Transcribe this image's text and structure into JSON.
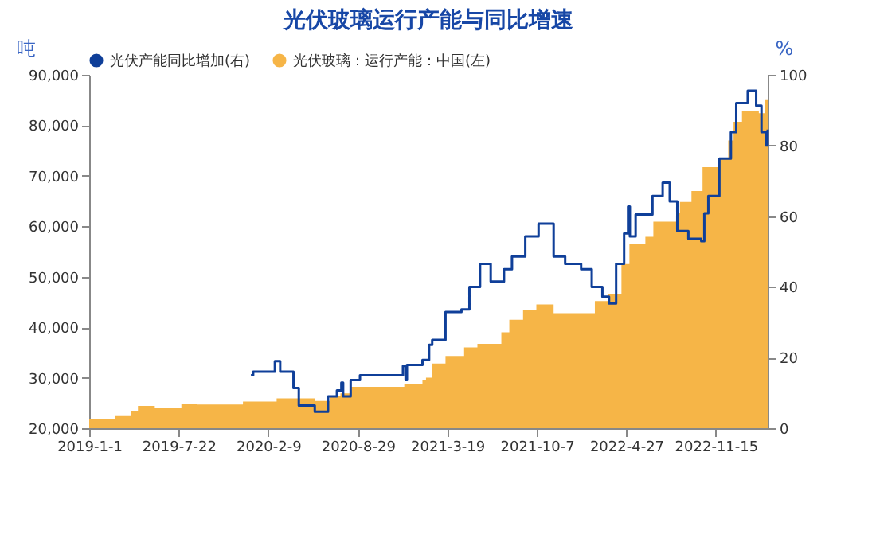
{
  "chart_data": {
    "type": "step",
    "title": "光伏玻璃运行产能与同比增速",
    "ylabel": "吨",
    "y2label": "%",
    "legend": "top",
    "xlim": [
      "2019-01-01",
      "2023-03-12"
    ],
    "xticks": [
      {
        "value": "2019-01-01",
        "label": "2019-1-1"
      },
      {
        "value": "2019-07-22",
        "label": "2019-7-22"
      },
      {
        "value": "2020-02-09",
        "label": "2020-2-9"
      },
      {
        "value": "2020-08-29",
        "label": "2020-8-29"
      },
      {
        "value": "2021-03-19",
        "label": "2021-3-19"
      },
      {
        "value": "2021-10-07",
        "label": "2021-10-7"
      },
      {
        "value": "2022-04-27",
        "label": "2022-4-27"
      },
      {
        "value": "2022-11-15",
        "label": "2022-11-15"
      }
    ],
    "ylim": [
      20000,
      90000
    ],
    "yticks": [
      {
        "value": 20000,
        "label": "20,000"
      },
      {
        "value": 30000,
        "label": "30,000"
      },
      {
        "value": 40000,
        "label": "40,000"
      },
      {
        "value": 50000,
        "label": "50,000"
      },
      {
        "value": 60000,
        "label": "60,000"
      },
      {
        "value": 70000,
        "label": "70,000"
      },
      {
        "value": 80000,
        "label": "80,000"
      },
      {
        "value": 90000,
        "label": "90,000"
      }
    ],
    "y2lim": [
      0,
      100
    ],
    "y2ticks": [
      0,
      20,
      40,
      60,
      80,
      100
    ],
    "series": [
      {
        "name": "光伏产能同比增加(右)",
        "axis": "y2",
        "color": "#0f3f99",
        "x": [
          "2020-01-01",
          "2020-01-06",
          "2020-02-24",
          "2020-03-07",
          "2020-04-06",
          "2020-04-18",
          "2020-05-24",
          "2020-06-23",
          "2020-07-13",
          "2020-07-23",
          "2020-07-27",
          "2020-08-13",
          "2020-09-03",
          "2020-12-09",
          "2020-12-15",
          "2020-12-18",
          "2021-01-22",
          "2021-02-06",
          "2021-02-13",
          "2021-03-15",
          "2021-04-20",
          "2021-05-08",
          "2021-06-01",
          "2021-06-25",
          "2021-07-25",
          "2021-08-12",
          "2021-09-11",
          "2021-10-11",
          "2021-11-14",
          "2021-12-10",
          "2022-01-15",
          "2022-02-08",
          "2022-03-04",
          "2022-03-19",
          "2022-04-04",
          "2022-04-22",
          "2022-05-01",
          "2022-05-05",
          "2022-05-18",
          "2022-06-25",
          "2022-07-18",
          "2022-08-03",
          "2022-08-20",
          "2022-09-14",
          "2022-10-13",
          "2022-10-20",
          "2022-10-29",
          "2022-11-23",
          "2022-12-19",
          "2022-12-31",
          "2023-01-26",
          "2023-02-14",
          "2023-02-26",
          "2023-03-08",
          "2023-03-12"
        ],
        "values": [
          15.0,
          16.0,
          19.0,
          16.0,
          11.4,
          6.4,
          4.7,
          9.0,
          10.7,
          12.9,
          9.0,
          13.6,
          15.0,
          17.6,
          13.6,
          17.9,
          19.3,
          23.6,
          25.0,
          32.9,
          33.6,
          40.0,
          46.5,
          41.5,
          45.0,
          48.6,
          54.3,
          57.9,
          48.6,
          46.5,
          45.0,
          40.0,
          37.2,
          35.3,
          46.5,
          55.1,
          62.7,
          54.3,
          60.5,
          65.7,
          69.5,
          64.2,
          55.8,
          53.6,
          52.9,
          60.8,
          65.7,
          76.3,
          83.8,
          92.0,
          95.5,
          91.3,
          83.8,
          80.0,
          84.5
        ]
      },
      {
        "name": "光伏玻璃：运行产能：中国(左)",
        "type": "area",
        "color": "#f6b547",
        "x": [
          "2019-01-01",
          "2019-02-28",
          "2019-04-05",
          "2019-04-21",
          "2019-05-29",
          "2019-07-28",
          "2019-09-02",
          "2019-12-14",
          "2020-02-28",
          "2020-05-24",
          "2020-06-27",
          "2020-07-21",
          "2020-08-14",
          "2020-12-12",
          "2021-01-22",
          "2021-01-30",
          "2021-02-13",
          "2021-03-15",
          "2021-04-26",
          "2021-05-26",
          "2021-07-19",
          "2021-08-06",
          "2021-09-06",
          "2021-10-06",
          "2021-11-14",
          "2022-02-15",
          "2022-03-17",
          "2022-04-16",
          "2022-05-04",
          "2022-06-09",
          "2022-06-27",
          "2022-08-19",
          "2022-08-26",
          "2022-09-21",
          "2022-10-16",
          "2022-11-23",
          "2022-12-13",
          "2022-12-25",
          "2023-01-13",
          "2023-02-20",
          "2023-03-05",
          "2023-03-12"
        ],
        "values": [
          21900,
          22400,
          23300,
          24400,
          24100,
          24900,
          24700,
          25300,
          25900,
          25400,
          26300,
          26900,
          28200,
          28800,
          29500,
          30000,
          32800,
          34300,
          36000,
          36700,
          39000,
          41500,
          43500,
          44500,
          42800,
          45200,
          46500,
          52500,
          56400,
          57900,
          60900,
          62600,
          64800,
          67000,
          71700,
          73300,
          77000,
          80700,
          82800,
          82400,
          85000,
          85000
        ]
      }
    ]
  }
}
